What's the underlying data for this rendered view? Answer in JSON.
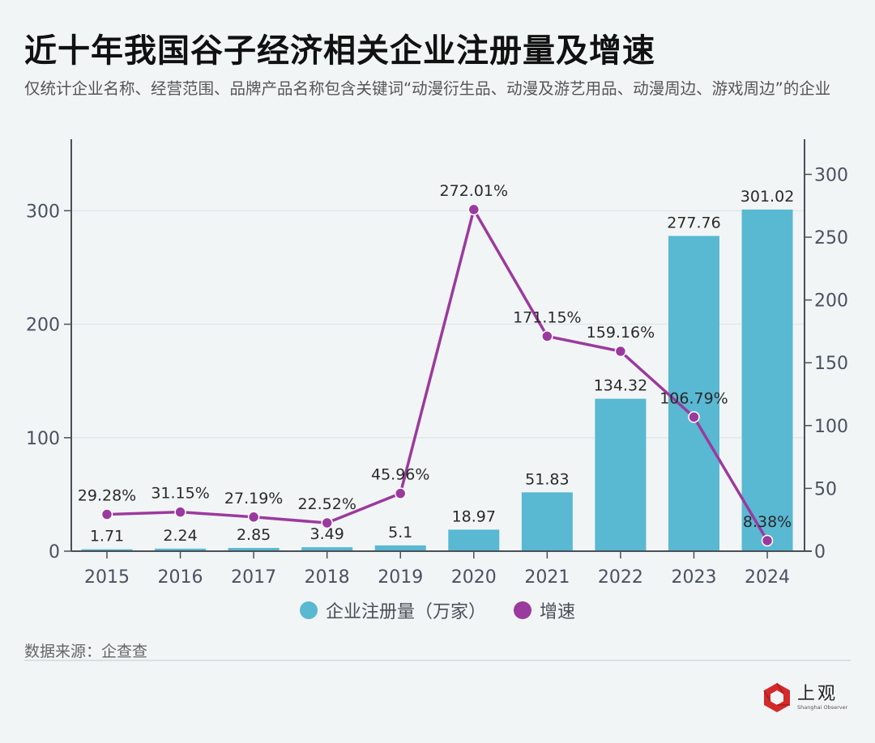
{
  "header": {
    "title": "近十年我国谷子经济相关企业注册量及增速",
    "subtitle": "仅统计企业名称、经营范围、品牌产品名称包含关键词“动漫衍生品、动漫及游艺用品、动漫周边、游戏周边”的企业"
  },
  "colors": {
    "bar": "#59b8d2",
    "line": "#9b3a9e",
    "axis": "#4a4f58",
    "grid": "#e1e7ec",
    "background": "#f2f5f6"
  },
  "chart_data": {
    "type": "bar+line",
    "title": "近十年我国谷子经济相关企业注册量及增速",
    "categories": [
      "2015",
      "2016",
      "2017",
      "2018",
      "2019",
      "2020",
      "2021",
      "2022",
      "2023",
      "2024"
    ],
    "series": [
      {
        "name": "企业注册量（万家）",
        "type": "bar",
        "axis": "left",
        "values": [
          1.71,
          2.24,
          2.85,
          3.49,
          5.1,
          18.97,
          51.83,
          134.32,
          277.76,
          301.02
        ],
        "labels": [
          "1.71",
          "2.24",
          "2.85",
          "3.49",
          "5.1",
          "18.97",
          "51.83",
          "134.32",
          "277.76",
          "301.02"
        ]
      },
      {
        "name": "增速",
        "type": "line",
        "axis": "right",
        "unit": "%",
        "values": [
          29.28,
          31.15,
          27.19,
          22.52,
          45.96,
          272.01,
          171.15,
          159.16,
          106.79,
          8.38
        ],
        "labels": [
          "29.28%",
          "31.15%",
          "27.19%",
          "22.52%",
          "45.96%",
          "272.01%",
          "171.15%",
          "159.16%",
          "106.79%",
          "8.38%"
        ]
      }
    ],
    "y_left": {
      "ticks": [
        0,
        100,
        200,
        300
      ],
      "ylim": [
        0,
        363
      ]
    },
    "y_right": {
      "ticks": [
        0,
        50,
        100,
        150,
        200,
        250,
        300
      ],
      "ylim": [
        0,
        328
      ]
    },
    "grid": true,
    "legend_position": "bottom-center"
  },
  "legend": {
    "items": [
      {
        "label": "企业注册量（万家）",
        "color": "#59b8d2"
      },
      {
        "label": "增速",
        "color": "#9b3a9e"
      }
    ]
  },
  "footer": {
    "source": "数据来源：企查查",
    "logo_cn": "上观",
    "logo_en": "Shanghai Observer"
  }
}
